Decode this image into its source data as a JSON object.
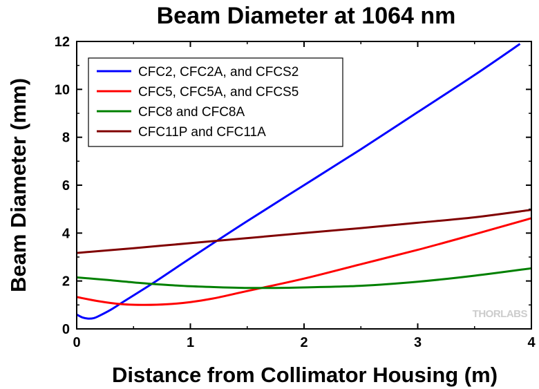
{
  "chart_data": {
    "type": "line",
    "title": "Beam Diameter at 1064 nm",
    "xlabel": "Distance from Collimator Housing (m)",
    "ylabel": "Beam Diameter (mm)",
    "xlim": [
      0,
      4
    ],
    "ylim": [
      0,
      12
    ],
    "xticks": [
      0,
      1,
      2,
      3,
      4
    ],
    "yticks": [
      0,
      2,
      4,
      6,
      8,
      10,
      12
    ],
    "grid": false,
    "legend": "top-left",
    "series": [
      {
        "name": "CFC2, CFC2A, and CFCS2",
        "color": "#0000ff",
        "x": [
          0,
          0.05,
          0.1,
          0.15,
          0.2,
          0.3,
          0.4,
          0.5,
          0.7,
          1.0,
          1.5,
          2.0,
          2.5,
          3.0,
          3.5,
          3.9
        ],
        "y": [
          0.6,
          0.48,
          0.43,
          0.45,
          0.55,
          0.8,
          1.1,
          1.4,
          2.0,
          2.95,
          4.5,
          6.0,
          7.5,
          9.05,
          10.6,
          11.9
        ]
      },
      {
        "name": "CFC5, CFC5A, and CFCS5",
        "color": "#ff0000",
        "x": [
          0,
          0.2,
          0.4,
          0.6,
          0.8,
          1.0,
          1.2,
          1.5,
          2.0,
          2.5,
          3.0,
          3.5,
          4.0
        ],
        "y": [
          1.33,
          1.15,
          1.03,
          1.0,
          1.03,
          1.12,
          1.27,
          1.58,
          2.1,
          2.7,
          3.3,
          3.95,
          4.62
        ]
      },
      {
        "name": "CFC8 and CFC8A",
        "color": "#008000",
        "x": [
          0,
          0.25,
          0.5,
          0.75,
          1.0,
          1.25,
          1.5,
          1.75,
          2.0,
          2.5,
          3.0,
          3.5,
          4.0
        ],
        "y": [
          2.15,
          2.05,
          1.94,
          1.85,
          1.78,
          1.74,
          1.71,
          1.71,
          1.73,
          1.8,
          1.97,
          2.22,
          2.53
        ]
      },
      {
        "name": "CFC11P and CFC11A",
        "color": "#800000",
        "x": [
          0,
          0.5,
          1.0,
          1.5,
          2.0,
          2.5,
          3.0,
          3.5,
          4.0
        ],
        "y": [
          3.17,
          3.37,
          3.58,
          3.79,
          4.0,
          4.21,
          4.43,
          4.66,
          4.97
        ]
      }
    ]
  },
  "logo": "THORLABS"
}
